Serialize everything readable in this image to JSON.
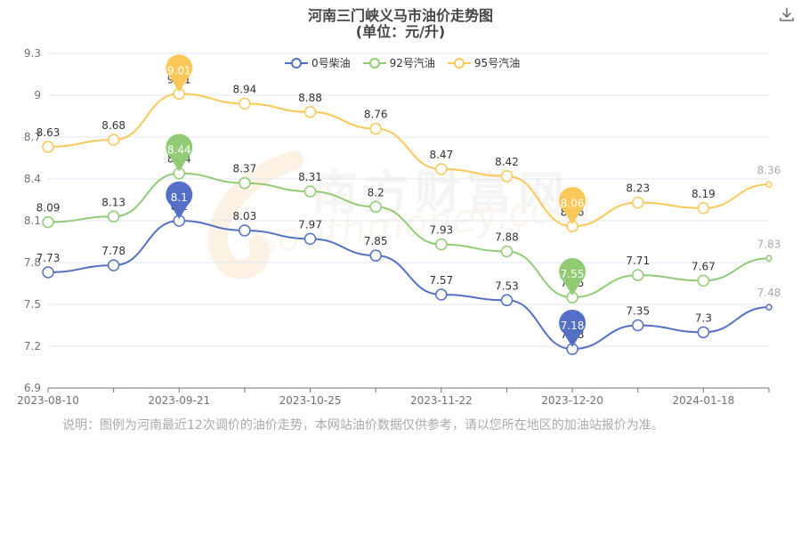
{
  "header": {
    "title": "河南三门峡义马市油价走势图",
    "subtitle": "(单位：元/升)"
  },
  "note": "说明：图例为河南最近12次调价的油价走势，本网站油价数据仅供参考，请以您所在地区的加油站报价为准。",
  "watermark": {
    "cn": "南方财富网",
    "en": "southmoney.com"
  },
  "icons": {
    "download": "download-icon"
  },
  "chart_data": {
    "type": "line",
    "x": [
      "2023-08-10",
      "2023-08-24",
      "2023-09-21",
      "2023-10-11",
      "2023-10-25",
      "2023-11-08",
      "2023-11-22",
      "2023-12-06",
      "2023-12-20",
      "2024-01-04",
      "2024-01-18",
      "2024-02-01"
    ],
    "xticks": [
      "2023-08-10",
      "2023-09-21",
      "2023-10-25",
      "2023-11-22",
      "2023-12-20",
      "2024-01-18"
    ],
    "yticks": [
      "6.9",
      "7.2",
      "7.5",
      "7.8",
      "8.1",
      "8.4",
      "8.7",
      "9",
      "9.3"
    ],
    "ylim": [
      6.9,
      9.3
    ],
    "grid": true,
    "legend_position": "top",
    "series": [
      {
        "name": "0号柴油",
        "color": "#5470c6",
        "values": [
          7.73,
          7.78,
          8.1,
          8.03,
          7.97,
          7.85,
          7.57,
          7.53,
          7.18,
          7.35,
          7.3,
          7.48
        ],
        "labels": [
          "7.73",
          "7.78",
          "8.1",
          "8.03",
          "7.97",
          "7.85",
          "7.57",
          "7.53",
          "7.18",
          "7.35",
          "7.3",
          "7.48"
        ],
        "max_index": 2,
        "min_index": 8
      },
      {
        "name": "92号汽油",
        "color": "#91cc75",
        "values": [
          8.09,
          8.13,
          8.44,
          8.37,
          8.31,
          8.2,
          7.93,
          7.88,
          7.55,
          7.71,
          7.67,
          7.83
        ],
        "labels": [
          "8.09",
          "8.13",
          "8.44",
          "8.37",
          "8.31",
          "8.2",
          "7.93",
          "7.88",
          "7.55",
          "7.71",
          "7.67",
          "7.83"
        ],
        "max_index": 2,
        "min_index": 8
      },
      {
        "name": "95号汽油",
        "color": "#fac858",
        "values": [
          8.63,
          8.68,
          9.01,
          8.94,
          8.88,
          8.76,
          8.47,
          8.42,
          8.06,
          8.23,
          8.19,
          8.36
        ],
        "labels": [
          "8.63",
          "8.68",
          "9.01",
          "8.94",
          "8.88",
          "8.76",
          "8.47",
          "8.42",
          "8.06",
          "8.23",
          "8.19",
          "8.36"
        ],
        "max_index": 2,
        "min_index": 8
      }
    ]
  }
}
